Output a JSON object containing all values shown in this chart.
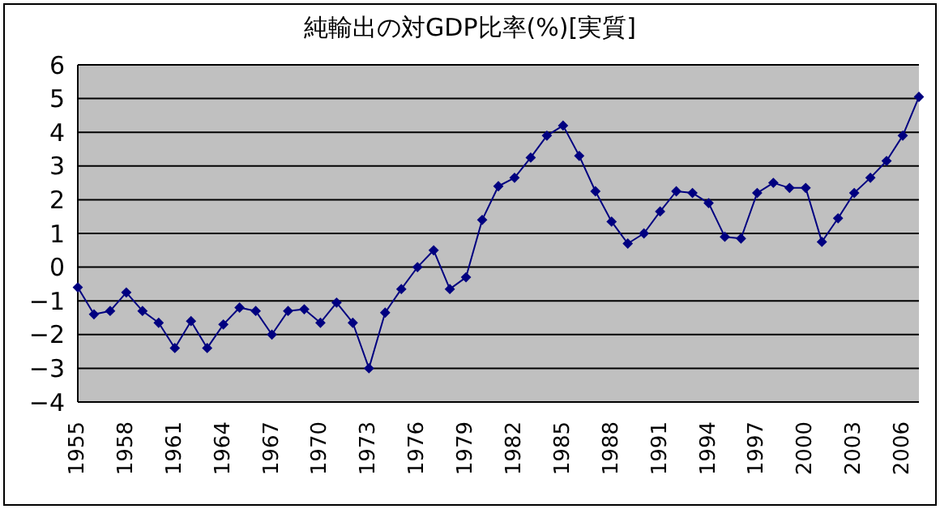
{
  "chart_data": {
    "type": "line",
    "title": "純輸出の対GDP比率(%)[実質]",
    "categories": [
      "1955",
      null,
      null,
      "1958",
      null,
      null,
      "1961",
      null,
      null,
      "1964",
      null,
      null,
      "1967",
      null,
      null,
      "1970",
      null,
      null,
      "1973",
      null,
      null,
      "1976",
      null,
      null,
      "1979",
      null,
      null,
      "1982",
      null,
      null,
      "1985",
      null,
      null,
      "1988",
      null,
      null,
      "1991",
      null,
      null,
      "1994",
      null,
      null,
      "1997",
      null,
      null,
      "2000",
      null,
      null,
      "2003",
      null,
      null,
      "2006",
      null
    ],
    "series": [
      {
        "color": "#000080",
        "values": [
          -0.6,
          -1.4,
          -1.3,
          -0.75,
          -1.3,
          -1.65,
          -2.4,
          -1.6,
          -2.4,
          -1.7,
          -1.2,
          -1.3,
          -2.0,
          -1.3,
          -1.25,
          -1.65,
          -1.05,
          -1.65,
          -3.0,
          -1.35,
          -0.65,
          0.0,
          0.5,
          -0.65,
          -0.3,
          1.4,
          2.4,
          2.65,
          3.25,
          3.9,
          4.2,
          3.3,
          2.25,
          1.35,
          0.7,
          1.0,
          1.65,
          2.25,
          2.2,
          1.9,
          0.9,
          0.85,
          2.2,
          2.5,
          2.35,
          2.35,
          0.75,
          1.45,
          2.2,
          2.65,
          3.15,
          3.9,
          5.05
        ]
      }
    ],
    "ylim": [
      -4,
      6
    ],
    "yticks": [
      -4,
      -3,
      -2,
      -1,
      0,
      1,
      2,
      3,
      4,
      5,
      6
    ],
    "grid": "y",
    "marker": "diamond",
    "line_style": "solid"
  }
}
